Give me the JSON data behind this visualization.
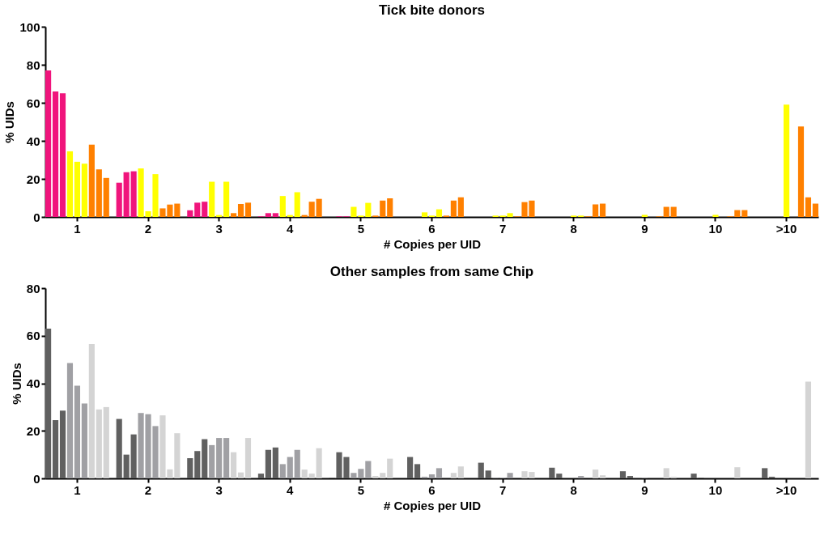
{
  "chart_data": [
    {
      "type": "bar",
      "title": "Tick bite donors",
      "xlabel": "# Copies per UID",
      "ylabel": "% UIDs",
      "categories": [
        "1",
        "2",
        "3",
        "4",
        "5",
        "6",
        "7",
        "8",
        "9",
        "10",
        ">10"
      ],
      "ylim": [
        0,
        100
      ],
      "yticks": [
        0,
        20,
        40,
        60,
        80,
        100
      ],
      "grid": false,
      "series": [
        {
          "color": "#f0147c",
          "values": [
            77,
            18,
            3.5,
            0.3,
            null,
            null,
            null,
            null,
            null,
            null,
            null
          ]
        },
        {
          "color": "#f0147c",
          "values": [
            66,
            23.5,
            7.5,
            2,
            0.3,
            null,
            null,
            null,
            null,
            null,
            null
          ]
        },
        {
          "color": "#f0147c",
          "values": [
            65,
            24,
            8,
            2,
            0.3,
            null,
            null,
            null,
            null,
            null,
            null
          ]
        },
        {
          "color": "#ffff00",
          "values": [
            34.5,
            25.5,
            18.5,
            11,
            5.3,
            2.4,
            0.7,
            null,
            null,
            null,
            null
          ]
        },
        {
          "color": "#ffff00",
          "values": [
            29,
            3,
            1,
            1,
            0.7,
            0.7,
            0.7,
            0.7,
            1.1,
            1.1,
            59
          ]
        },
        {
          "color": "#ffff00",
          "values": [
            28,
            22.5,
            18.5,
            13,
            7.4,
            4,
            2,
            0.7,
            null,
            null,
            null
          ]
        },
        {
          "color": "#ff8000",
          "values": [
            38,
            4.5,
            2,
            1,
            0.7,
            0.7,
            0.3,
            0.3,
            0.3,
            0.3,
            47.6
          ]
        },
        {
          "color": "#ff8000",
          "values": [
            25,
            6.5,
            6.8,
            8,
            8.6,
            8.6,
            7.8,
            6.6,
            5.3,
            3.6,
            10.3
          ]
        },
        {
          "color": "#ff8000",
          "values": [
            20.5,
            7,
            7.5,
            9.5,
            9.8,
            10.3,
            8.6,
            7,
            5.3,
            3.6,
            7
          ]
        }
      ]
    },
    {
      "type": "bar",
      "title": "Other samples from same Chip",
      "xlabel": "# Copies per UID",
      "ylabel": "% UIDs",
      "categories": [
        "1",
        "2",
        "3",
        "4",
        "5",
        "6",
        "7",
        "8",
        "9",
        "10",
        ">10"
      ],
      "ylim": [
        0,
        80
      ],
      "yticks": [
        0,
        20,
        40,
        60,
        80
      ],
      "grid": false,
      "series": [
        {
          "color": "#606060",
          "values": [
            63,
            25,
            8.5,
            2,
            0.2,
            null,
            null,
            null,
            null,
            null,
            null
          ]
        },
        {
          "color": "#606060",
          "values": [
            24.5,
            10,
            11.5,
            12,
            11,
            9,
            6.6,
            4.5,
            3,
            2,
            4.3
          ]
        },
        {
          "color": "#606060",
          "values": [
            28.5,
            18.5,
            16.5,
            13,
            9,
            6,
            3.3,
            2,
            1,
            0.3,
            0.7
          ]
        },
        {
          "color": "#a0a0a4",
          "values": [
            48.5,
            27.5,
            14,
            6,
            2.3,
            0.7,
            0.2,
            null,
            null,
            null,
            null
          ]
        },
        {
          "color": "#a0a0a4",
          "values": [
            39,
            27,
            17,
            9,
            4,
            1.7,
            0.3,
            null,
            0.2,
            null,
            null
          ]
        },
        {
          "color": "#a0a0a4",
          "values": [
            31.5,
            22,
            17,
            12,
            7.3,
            4.3,
            2.3,
            1,
            null,
            null,
            null
          ]
        },
        {
          "color": "#d4d4d4",
          "values": [
            56.5,
            26.5,
            11,
            3.7,
            1,
            null,
            null,
            null,
            null,
            null,
            null
          ]
        },
        {
          "color": "#d4d4d4",
          "values": [
            29,
            3.8,
            2.5,
            2,
            2.3,
            2.3,
            3,
            3.7,
            4.3,
            4.7,
            40.7
          ]
        },
        {
          "color": "#d4d4d4",
          "values": [
            30,
            19,
            17,
            12.7,
            8.3,
            5,
            2.7,
            1.3,
            0.7,
            null,
            null
          ]
        }
      ]
    }
  ]
}
